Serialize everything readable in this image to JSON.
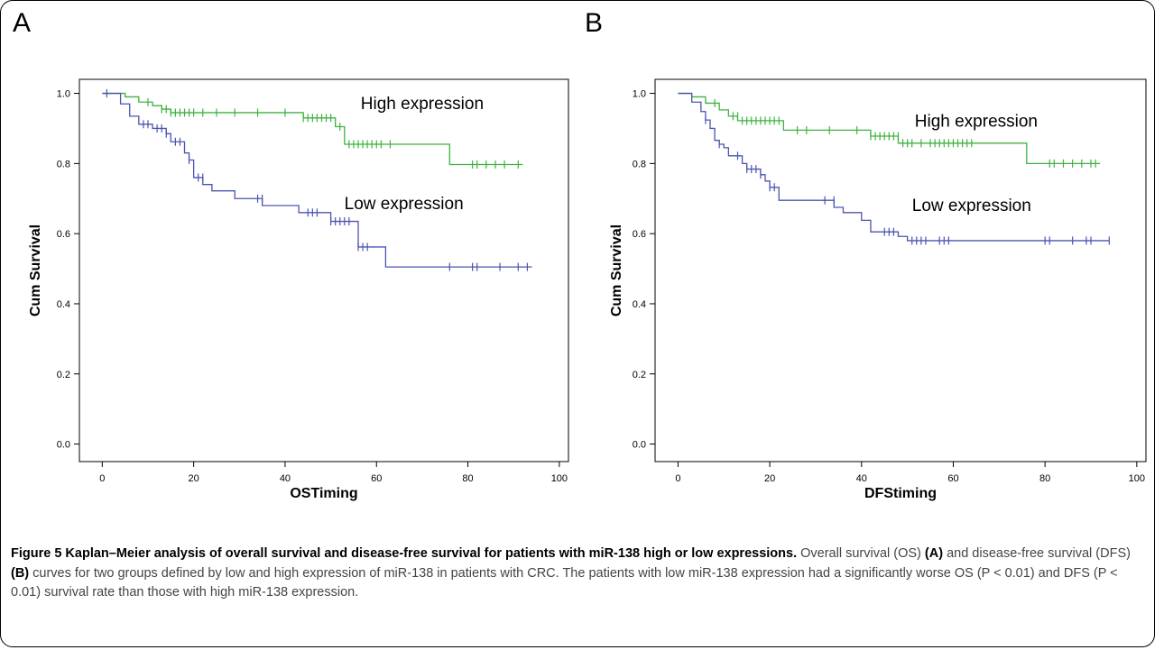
{
  "panels": [
    {
      "letter": "A",
      "chart_data": {
        "type": "line",
        "subtype": "kaplan-meier step",
        "xlabel": "OSTiming",
        "ylabel": "Cum Survival",
        "xlim": [
          -5,
          102
        ],
        "ylim": [
          -0.05,
          1.04
        ],
        "xticks": [
          "0",
          "20",
          "40",
          "60",
          "80",
          "100"
        ],
        "yticks": [
          "0.0",
          "0.2",
          "0.4",
          "0.6",
          "0.8",
          "1.0"
        ],
        "grid": false,
        "legend": "none",
        "annotations": [
          {
            "text": "High expression",
            "x": 70,
            "y": 0.955
          },
          {
            "text": "Low expression",
            "x": 66,
            "y": 0.67
          }
        ],
        "series": [
          {
            "color": "#3fb23f",
            "steps": [
              [
                0,
                1.0
              ],
              [
                5,
                0.99
              ],
              [
                8,
                0.975
              ],
              [
                11,
                0.965
              ],
              [
                13,
                0.955
              ],
              [
                15,
                0.945
              ],
              [
                44,
                0.93
              ],
              [
                51,
                0.905
              ],
              [
                53,
                0.855
              ],
              [
                76,
                0.797
              ],
              [
                92,
                0.797
              ]
            ],
            "censors": [
              [
                10,
                0.975
              ],
              [
                13,
                0.955
              ],
              [
                14,
                0.955
              ],
              [
                15,
                0.945
              ],
              [
                16,
                0.945
              ],
              [
                17,
                0.945
              ],
              [
                18,
                0.945
              ],
              [
                19,
                0.945
              ],
              [
                20,
                0.945
              ],
              [
                22,
                0.945
              ],
              [
                25,
                0.945
              ],
              [
                29,
                0.945
              ],
              [
                34,
                0.945
              ],
              [
                40,
                0.945
              ],
              [
                44,
                0.93
              ],
              [
                45,
                0.93
              ],
              [
                46,
                0.93
              ],
              [
                47,
                0.93
              ],
              [
                48,
                0.93
              ],
              [
                49,
                0.93
              ],
              [
                50,
                0.93
              ],
              [
                52,
                0.905
              ],
              [
                54,
                0.855
              ],
              [
                55,
                0.855
              ],
              [
                56,
                0.855
              ],
              [
                57,
                0.855
              ],
              [
                58,
                0.855
              ],
              [
                59,
                0.855
              ],
              [
                60,
                0.855
              ],
              [
                61,
                0.855
              ],
              [
                63,
                0.855
              ],
              [
                81,
                0.797
              ],
              [
                82,
                0.797
              ],
              [
                84,
                0.797
              ],
              [
                86,
                0.797
              ],
              [
                88,
                0.797
              ],
              [
                91,
                0.797
              ]
            ]
          },
          {
            "color": "#4a55b0",
            "steps": [
              [
                0,
                1.0
              ],
              [
                4,
                0.97
              ],
              [
                6,
                0.935
              ],
              [
                8,
                0.912
              ],
              [
                11,
                0.9
              ],
              [
                14,
                0.885
              ],
              [
                15,
                0.862
              ],
              [
                18,
                0.83
              ],
              [
                19,
                0.81
              ],
              [
                20,
                0.76
              ],
              [
                22,
                0.74
              ],
              [
                24,
                0.722
              ],
              [
                29,
                0.7
              ],
              [
                35,
                0.68
              ],
              [
                43,
                0.66
              ],
              [
                50,
                0.635
              ],
              [
                56,
                0.562
              ],
              [
                62,
                0.505
              ],
              [
                94,
                0.505
              ]
            ],
            "censors": [
              [
                1,
                1.0
              ],
              [
                9,
                0.912
              ],
              [
                10,
                0.912
              ],
              [
                12,
                0.9
              ],
              [
                13,
                0.9
              ],
              [
                14,
                0.885
              ],
              [
                16,
                0.862
              ],
              [
                17,
                0.862
              ],
              [
                19,
                0.81
              ],
              [
                21,
                0.76
              ],
              [
                22,
                0.76
              ],
              [
                34,
                0.7
              ],
              [
                35,
                0.7
              ],
              [
                45,
                0.66
              ],
              [
                46,
                0.66
              ],
              [
                47,
                0.66
              ],
              [
                50,
                0.635
              ],
              [
                51,
                0.635
              ],
              [
                52,
                0.635
              ],
              [
                53,
                0.635
              ],
              [
                54,
                0.635
              ],
              [
                56,
                0.562
              ],
              [
                57,
                0.562
              ],
              [
                58,
                0.562
              ],
              [
                76,
                0.505
              ],
              [
                81,
                0.505
              ],
              [
                82,
                0.505
              ],
              [
                87,
                0.505
              ],
              [
                91,
                0.505
              ],
              [
                93,
                0.505
              ]
            ]
          }
        ]
      }
    },
    {
      "letter": "B",
      "chart_data": {
        "type": "line",
        "subtype": "kaplan-meier step",
        "xlabel": "DFStiming",
        "ylabel": "Cum Survival",
        "xlim": [
          -5,
          102
        ],
        "ylim": [
          -0.05,
          1.04
        ],
        "xticks": [
          "0",
          "20",
          "40",
          "60",
          "80",
          "100"
        ],
        "yticks": [
          "0.0",
          "0.2",
          "0.4",
          "0.6",
          "0.8",
          "1.0"
        ],
        "grid": false,
        "legend": "none",
        "annotations": [
          {
            "text": "High expression",
            "x": 65,
            "y": 0.905
          },
          {
            "text": "Low expression",
            "x": 64,
            "y": 0.665
          }
        ],
        "series": [
          {
            "color": "#3fb23f",
            "steps": [
              [
                0,
                1.0
              ],
              [
                3,
                0.99
              ],
              [
                6,
                0.972
              ],
              [
                9,
                0.953
              ],
              [
                11,
                0.935
              ],
              [
                13,
                0.922
              ],
              [
                23,
                0.895
              ],
              [
                42,
                0.878
              ],
              [
                48,
                0.858
              ],
              [
                76,
                0.8
              ],
              [
                92,
                0.8
              ]
            ],
            "censors": [
              [
                8,
                0.972
              ],
              [
                12,
                0.935
              ],
              [
                13,
                0.935
              ],
              [
                14,
                0.922
              ],
              [
                15,
                0.922
              ],
              [
                16,
                0.922
              ],
              [
                17,
                0.922
              ],
              [
                18,
                0.922
              ],
              [
                19,
                0.922
              ],
              [
                20,
                0.922
              ],
              [
                21,
                0.922
              ],
              [
                22,
                0.922
              ],
              [
                26,
                0.895
              ],
              [
                28,
                0.895
              ],
              [
                33,
                0.895
              ],
              [
                39,
                0.895
              ],
              [
                42,
                0.878
              ],
              [
                43,
                0.878
              ],
              [
                44,
                0.878
              ],
              [
                45,
                0.878
              ],
              [
                46,
                0.878
              ],
              [
                47,
                0.878
              ],
              [
                48,
                0.878
              ],
              [
                49,
                0.858
              ],
              [
                50,
                0.858
              ],
              [
                51,
                0.858
              ],
              [
                53,
                0.858
              ],
              [
                55,
                0.858
              ],
              [
                56,
                0.858
              ],
              [
                57,
                0.858
              ],
              [
                58,
                0.858
              ],
              [
                59,
                0.858
              ],
              [
                60,
                0.858
              ],
              [
                61,
                0.858
              ],
              [
                62,
                0.858
              ],
              [
                63,
                0.858
              ],
              [
                64,
                0.858
              ],
              [
                81,
                0.8
              ],
              [
                82,
                0.8
              ],
              [
                84,
                0.8
              ],
              [
                86,
                0.8
              ],
              [
                88,
                0.8
              ],
              [
                90,
                0.8
              ],
              [
                91,
                0.8
              ]
            ]
          },
          {
            "color": "#4a55b0",
            "steps": [
              [
                0,
                1.0
              ],
              [
                3,
                0.975
              ],
              [
                5,
                0.948
              ],
              [
                6,
                0.924
              ],
              [
                7,
                0.9
              ],
              [
                8,
                0.866
              ],
              [
                9,
                0.855
              ],
              [
                10,
                0.845
              ],
              [
                11,
                0.822
              ],
              [
                14,
                0.8
              ],
              [
                15,
                0.784
              ],
              [
                18,
                0.768
              ],
              [
                19,
                0.75
              ],
              [
                20,
                0.732
              ],
              [
                22,
                0.695
              ],
              [
                34,
                0.675
              ],
              [
                36,
                0.66
              ],
              [
                40,
                0.638
              ],
              [
                42,
                0.605
              ],
              [
                48,
                0.592
              ],
              [
                50,
                0.58
              ],
              [
                94,
                0.58
              ]
            ],
            "censors": [
              [
                6,
                0.924
              ],
              [
                9,
                0.855
              ],
              [
                13,
                0.822
              ],
              [
                15,
                0.784
              ],
              [
                16,
                0.784
              ],
              [
                17,
                0.784
              ],
              [
                18,
                0.768
              ],
              [
                20,
                0.732
              ],
              [
                21,
                0.732
              ],
              [
                32,
                0.695
              ],
              [
                34,
                0.695
              ],
              [
                45,
                0.605
              ],
              [
                46,
                0.605
              ],
              [
                47,
                0.605
              ],
              [
                51,
                0.58
              ],
              [
                52,
                0.58
              ],
              [
                53,
                0.58
              ],
              [
                54,
                0.58
              ],
              [
                57,
                0.58
              ],
              [
                58,
                0.58
              ],
              [
                59,
                0.58
              ],
              [
                80,
                0.58
              ],
              [
                81,
                0.58
              ],
              [
                86,
                0.58
              ],
              [
                89,
                0.58
              ],
              [
                90,
                0.58
              ],
              [
                94,
                0.58
              ]
            ]
          }
        ]
      }
    }
  ],
  "caption": {
    "figure_title": "Figure 5 Kaplan–Meier analysis of overall survival and disease-free survival for patients with miR-138 high or low expressions.",
    "part1": " Overall survival (OS) ",
    "label_a": "(A)",
    "part2": " and disease-free survival (DFS) ",
    "label_b": "(B)",
    "part3": " curves for two groups defined by low and high expression of miR-138 in patients with CRC. The patients with low miR-138 expression had a significantly worse OS (P < 0.01) and DFS (P < 0.01) survival rate than those with high miR-138 expression."
  }
}
